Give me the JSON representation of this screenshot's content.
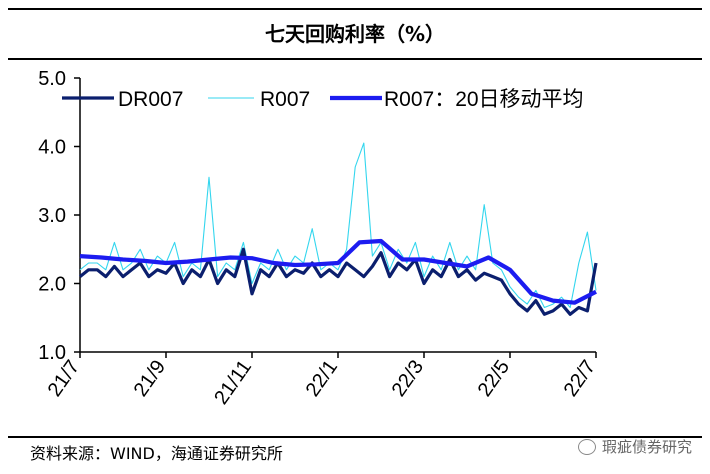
{
  "title": "七天回购利率（%）",
  "source": "资料来源：WIND，海通证券研究所",
  "watermark": "瑕疵债券研究",
  "colors": {
    "DR007": "#0b1f6e",
    "R007": "#33d6ee",
    "R007_MA20": "#1c1cf0"
  },
  "chart_data": {
    "type": "line",
    "title": "七天回购利率（%）",
    "xlabel": "",
    "ylabel": "",
    "ylim": [
      1.0,
      5.0
    ],
    "yticks": [
      "5.0",
      "4.0",
      "3.0",
      "2.0",
      "1.0"
    ],
    "xticks": [
      "21/7",
      "21/9",
      "21/11",
      "22/1",
      "22/3",
      "22/5",
      "22/7"
    ],
    "legend_position": "top",
    "x_unit": "months since 2021-07",
    "series": [
      {
        "name": "DR007",
        "x": [
          0,
          0.2,
          0.4,
          0.6,
          0.8,
          1.0,
          1.2,
          1.4,
          1.6,
          1.8,
          2.0,
          2.2,
          2.4,
          2.6,
          2.8,
          3.0,
          3.2,
          3.4,
          3.6,
          3.8,
          4.0,
          4.2,
          4.4,
          4.6,
          4.8,
          5.0,
          5.2,
          5.4,
          5.6,
          5.8,
          6.0,
          6.2,
          6.4,
          6.6,
          6.8,
          7.0,
          7.2,
          7.4,
          7.6,
          7.8,
          8.0,
          8.2,
          8.4,
          8.6,
          8.8,
          9.0,
          9.2,
          9.4,
          9.6,
          9.8,
          10.0,
          10.2,
          10.4,
          10.6,
          10.8,
          11.0,
          11.2,
          11.4,
          11.6,
          11.8,
          12.0
        ],
        "values": [
          2.1,
          2.2,
          2.2,
          2.1,
          2.25,
          2.1,
          2.2,
          2.3,
          2.1,
          2.2,
          2.15,
          2.3,
          2.0,
          2.2,
          2.1,
          2.35,
          2.0,
          2.2,
          2.1,
          2.5,
          1.85,
          2.2,
          2.1,
          2.3,
          2.1,
          2.2,
          2.15,
          2.3,
          2.1,
          2.2,
          2.1,
          2.3,
          2.2,
          2.1,
          2.25,
          2.45,
          2.1,
          2.3,
          2.2,
          2.35,
          2.0,
          2.2,
          2.1,
          2.35,
          2.1,
          2.2,
          2.05,
          2.15,
          2.1,
          2.05,
          1.85,
          1.7,
          1.6,
          1.75,
          1.55,
          1.6,
          1.7,
          1.55,
          1.65,
          1.6,
          2.3
        ]
      },
      {
        "name": "R007",
        "x": [
          0,
          0.2,
          0.4,
          0.6,
          0.8,
          1.0,
          1.2,
          1.4,
          1.6,
          1.8,
          2.0,
          2.2,
          2.4,
          2.6,
          2.8,
          3.0,
          3.2,
          3.4,
          3.6,
          3.8,
          4.0,
          4.2,
          4.4,
          4.6,
          4.8,
          5.0,
          5.2,
          5.4,
          5.6,
          5.8,
          6.0,
          6.2,
          6.4,
          6.6,
          6.8,
          7.0,
          7.2,
          7.4,
          7.6,
          7.8,
          8.0,
          8.2,
          8.4,
          8.6,
          8.8,
          9.0,
          9.2,
          9.4,
          9.6,
          9.8,
          10.0,
          10.2,
          10.4,
          10.6,
          10.8,
          11.0,
          11.2,
          11.4,
          11.6,
          11.8,
          12.0
        ],
        "values": [
          2.2,
          2.3,
          2.3,
          2.2,
          2.6,
          2.2,
          2.3,
          2.5,
          2.2,
          2.4,
          2.3,
          2.6,
          2.1,
          2.3,
          2.2,
          3.55,
          2.1,
          2.3,
          2.2,
          2.6,
          2.0,
          2.3,
          2.2,
          2.5,
          2.2,
          2.4,
          2.3,
          2.8,
          2.2,
          2.3,
          2.2,
          2.5,
          3.7,
          4.05,
          2.4,
          2.6,
          2.2,
          2.5,
          2.3,
          2.6,
          2.1,
          2.4,
          2.2,
          2.6,
          2.2,
          2.4,
          2.2,
          3.15,
          2.3,
          2.2,
          1.95,
          1.8,
          1.7,
          1.9,
          1.65,
          1.7,
          1.8,
          1.65,
          2.3,
          2.75,
          1.9
        ]
      },
      {
        "name": "R007：20日移动平均",
        "x": [
          0,
          0.5,
          1.0,
          1.5,
          2.0,
          2.5,
          3.0,
          3.5,
          4.0,
          4.5,
          5.0,
          5.5,
          6.0,
          6.5,
          7.0,
          7.5,
          8.0,
          8.5,
          9.0,
          9.5,
          10.0,
          10.5,
          11.0,
          11.5,
          12.0
        ],
        "values": [
          2.4,
          2.38,
          2.35,
          2.33,
          2.3,
          2.32,
          2.35,
          2.38,
          2.37,
          2.3,
          2.27,
          2.28,
          2.3,
          2.6,
          2.62,
          2.35,
          2.35,
          2.3,
          2.25,
          2.38,
          2.2,
          1.85,
          1.75,
          1.72,
          1.88
        ]
      }
    ]
  }
}
